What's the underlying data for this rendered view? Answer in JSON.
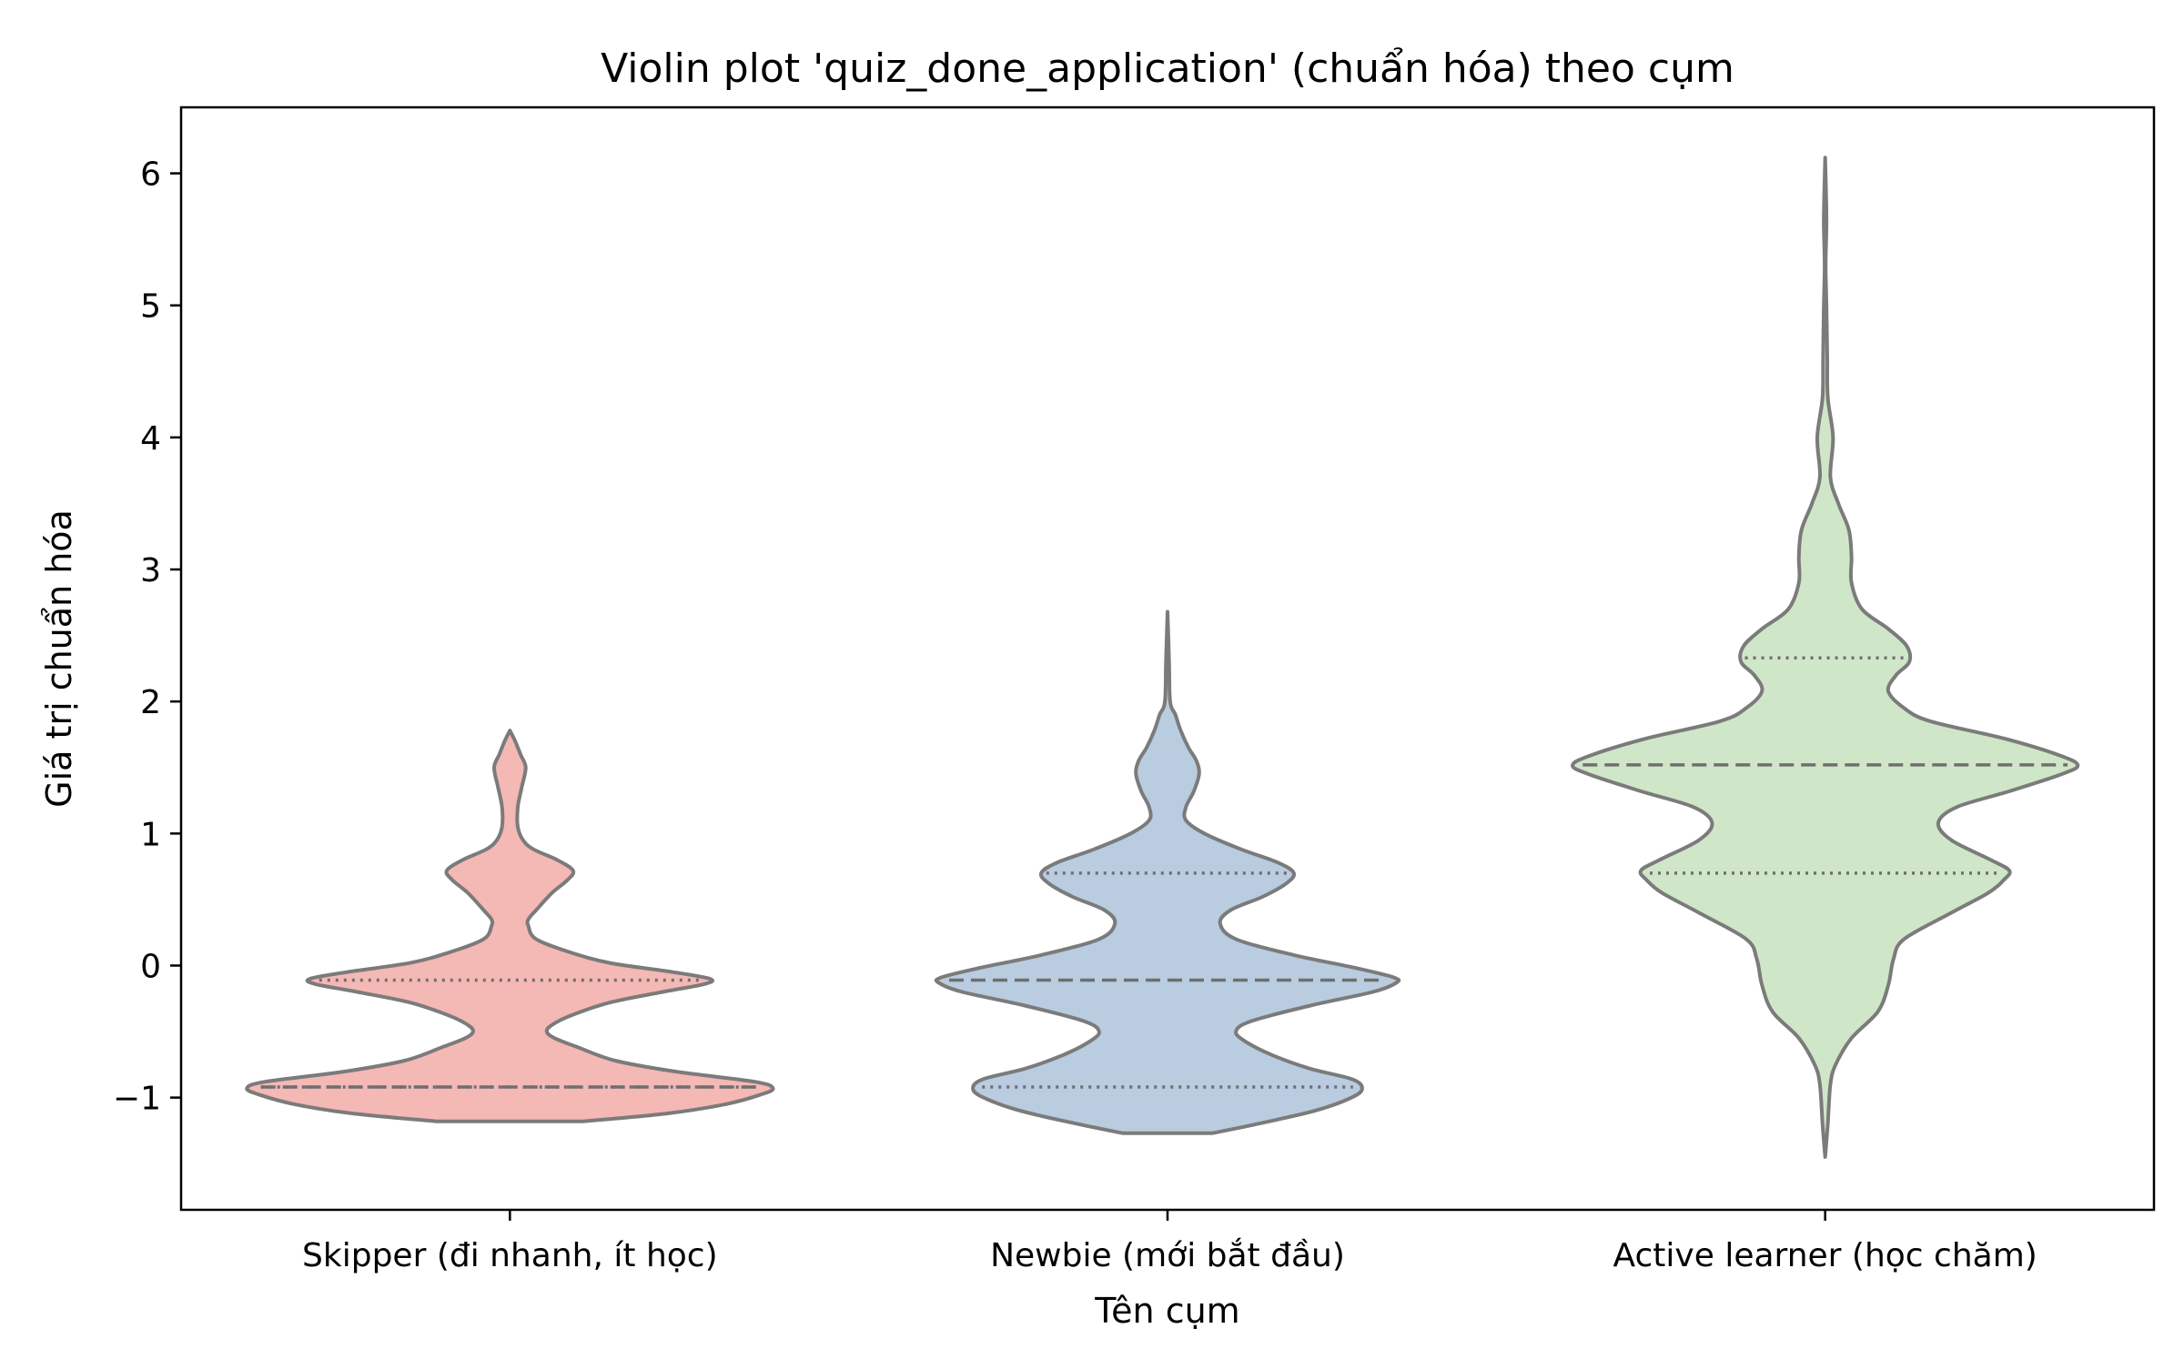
{
  "chart_data": {
    "type": "violin",
    "title": "Violin plot 'quiz_done_application' (chuẩn hóa) theo cụm",
    "xlabel": "Tên cụm",
    "ylabel": "Giá trị chuẩn hóa",
    "ylim": [
      -1.85,
      6.5
    ],
    "yticks": [
      -1,
      0,
      1,
      2,
      3,
      4,
      5,
      6
    ],
    "ytick_labels": [
      "−1",
      "0",
      "1",
      "2",
      "3",
      "4",
      "5",
      "6"
    ],
    "grid": false,
    "categories": [
      "Skipper (đi nhanh, ít học)",
      "Newbie (mới bắt đầu)",
      "Active learner (học chăm)"
    ],
    "series": [
      {
        "color": "#f4b8b5",
        "quartiles": {
          "q1": -0.92,
          "median": -0.92,
          "q3": -0.11
        },
        "profile": [
          [
            -1.18,
            0.28
          ],
          [
            -1.12,
            0.6
          ],
          [
            -1.05,
            0.82
          ],
          [
            -0.98,
            0.95
          ],
          [
            -0.93,
            1.0
          ],
          [
            -0.88,
            0.93
          ],
          [
            -0.8,
            0.62
          ],
          [
            -0.72,
            0.4
          ],
          [
            -0.62,
            0.26
          ],
          [
            -0.55,
            0.17
          ],
          [
            -0.5,
            0.14
          ],
          [
            -0.45,
            0.16
          ],
          [
            -0.38,
            0.23
          ],
          [
            -0.28,
            0.38
          ],
          [
            -0.2,
            0.58
          ],
          [
            -0.14,
            0.74
          ],
          [
            -0.1,
            0.76
          ],
          [
            -0.05,
            0.62
          ],
          [
            0.02,
            0.38
          ],
          [
            0.1,
            0.23
          ],
          [
            0.2,
            0.1
          ],
          [
            0.3,
            0.07
          ],
          [
            0.35,
            0.07
          ],
          [
            0.42,
            0.1
          ],
          [
            0.55,
            0.16
          ],
          [
            0.65,
            0.22
          ],
          [
            0.72,
            0.24
          ],
          [
            0.8,
            0.18
          ],
          [
            0.88,
            0.09
          ],
          [
            0.95,
            0.05
          ],
          [
            1.05,
            0.03
          ],
          [
            1.2,
            0.03
          ],
          [
            1.35,
            0.045
          ],
          [
            1.5,
            0.06
          ],
          [
            1.6,
            0.04
          ],
          [
            1.7,
            0.02
          ],
          [
            1.78,
            0.0
          ]
        ]
      },
      {
        "color": "#b9cce0",
        "quartiles": {
          "q1": -0.92,
          "median": -0.11,
          "q3": 0.7
        },
        "profile": [
          [
            -1.27,
            0.17
          ],
          [
            -1.2,
            0.34
          ],
          [
            -1.1,
            0.56
          ],
          [
            -1.0,
            0.7
          ],
          [
            -0.93,
            0.74
          ],
          [
            -0.86,
            0.7
          ],
          [
            -0.78,
            0.54
          ],
          [
            -0.68,
            0.4
          ],
          [
            -0.58,
            0.3
          ],
          [
            -0.5,
            0.26
          ],
          [
            -0.42,
            0.32
          ],
          [
            -0.3,
            0.55
          ],
          [
            -0.2,
            0.78
          ],
          [
            -0.13,
            0.87
          ],
          [
            -0.09,
            0.86
          ],
          [
            -0.02,
            0.72
          ],
          [
            0.08,
            0.48
          ],
          [
            0.2,
            0.26
          ],
          [
            0.32,
            0.2
          ],
          [
            0.42,
            0.24
          ],
          [
            0.52,
            0.36
          ],
          [
            0.62,
            0.45
          ],
          [
            0.7,
            0.48
          ],
          [
            0.78,
            0.42
          ],
          [
            0.88,
            0.28
          ],
          [
            1.0,
            0.14
          ],
          [
            1.1,
            0.07
          ],
          [
            1.2,
            0.07
          ],
          [
            1.32,
            0.1
          ],
          [
            1.45,
            0.12
          ],
          [
            1.55,
            0.11
          ],
          [
            1.65,
            0.08
          ],
          [
            1.78,
            0.05
          ],
          [
            1.9,
            0.03
          ],
          [
            2.0,
            0.01
          ],
          [
            2.3,
            0.006
          ],
          [
            2.68,
            0.0
          ]
        ]
      },
      {
        "color": "#d0e6c8",
        "quartiles": {
          "q1": 0.7,
          "median": 1.52,
          "q3": 2.33
        },
        "profile": [
          [
            -1.45,
            0.0
          ],
          [
            -1.2,
            0.01
          ],
          [
            -0.9,
            0.02
          ],
          [
            -0.75,
            0.04
          ],
          [
            -0.55,
            0.1
          ],
          [
            -0.35,
            0.2
          ],
          [
            -0.15,
            0.24
          ],
          [
            0.05,
            0.26
          ],
          [
            0.2,
            0.3
          ],
          [
            0.4,
            0.48
          ],
          [
            0.55,
            0.62
          ],
          [
            0.65,
            0.68
          ],
          [
            0.72,
            0.7
          ],
          [
            0.8,
            0.63
          ],
          [
            0.95,
            0.48
          ],
          [
            1.08,
            0.43
          ],
          [
            1.2,
            0.5
          ],
          [
            1.32,
            0.7
          ],
          [
            1.45,
            0.9
          ],
          [
            1.52,
            0.96
          ],
          [
            1.6,
            0.88
          ],
          [
            1.72,
            0.68
          ],
          [
            1.85,
            0.4
          ],
          [
            1.95,
            0.3
          ],
          [
            2.08,
            0.24
          ],
          [
            2.2,
            0.27
          ],
          [
            2.3,
            0.32
          ],
          [
            2.42,
            0.31
          ],
          [
            2.55,
            0.24
          ],
          [
            2.7,
            0.14
          ],
          [
            2.9,
            0.1
          ],
          [
            3.1,
            0.1
          ],
          [
            3.3,
            0.09
          ],
          [
            3.5,
            0.05
          ],
          [
            3.7,
            0.02
          ],
          [
            4.0,
            0.03
          ],
          [
            4.3,
            0.01
          ],
          [
            4.6,
            0.008
          ],
          [
            5.0,
            0.005
          ],
          [
            5.3,
            0.002
          ],
          [
            5.6,
            0.005
          ],
          [
            5.8,
            0.004
          ],
          [
            6.12,
            0.0
          ]
        ]
      }
    ]
  }
}
